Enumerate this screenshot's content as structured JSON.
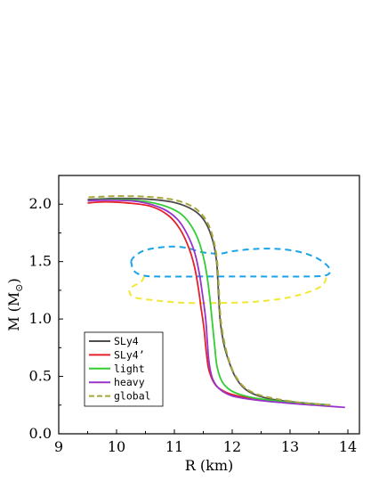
{
  "chart_data": {
    "type": "line",
    "xlabel": "R (km)",
    "ylabel": "M (M",
    "ylabel_symbol": "⊙",
    "ylabel_close": ")",
    "xlim": [
      9,
      14.2
    ],
    "ylim": [
      0,
      2.25
    ],
    "xticks": [
      9,
      10,
      11,
      12,
      13,
      14
    ],
    "yticks": [
      0.0,
      0.5,
      1.0,
      1.5,
      2.0
    ],
    "xtick_labels": [
      "9",
      "10",
      "11",
      "12",
      "13",
      "14"
    ],
    "ytick_labels": [
      "0.0",
      "0.5",
      "1.0",
      "1.5",
      "2.0"
    ],
    "legend_position": "bottom-left",
    "series": [
      {
        "name": "SLy4",
        "color": "#4d4d4d",
        "style": "solid",
        "points": [
          [
            13.7,
            0.25
          ],
          [
            13.2,
            0.27
          ],
          [
            12.7,
            0.3
          ],
          [
            12.4,
            0.34
          ],
          [
            12.2,
            0.4
          ],
          [
            12.05,
            0.5
          ],
          [
            11.95,
            0.62
          ],
          [
            11.87,
            0.75
          ],
          [
            11.82,
            0.88
          ],
          [
            11.79,
            1.0
          ],
          [
            11.77,
            1.15
          ],
          [
            11.75,
            1.35
          ],
          [
            11.73,
            1.5
          ],
          [
            11.68,
            1.65
          ],
          [
            11.58,
            1.8
          ],
          [
            11.45,
            1.9
          ],
          [
            11.25,
            1.97
          ],
          [
            10.95,
            2.02
          ],
          [
            10.5,
            2.045
          ],
          [
            10.0,
            2.05
          ],
          [
            9.5,
            2.04
          ]
        ]
      },
      {
        "name": "SLy4’",
        "color": "#e6202a",
        "style": "solid",
        "points": [
          [
            13.7,
            0.25
          ],
          [
            13.2,
            0.265
          ],
          [
            12.7,
            0.285
          ],
          [
            12.3,
            0.31
          ],
          [
            11.95,
            0.35
          ],
          [
            11.72,
            0.42
          ],
          [
            11.6,
            0.55
          ],
          [
            11.55,
            0.72
          ],
          [
            11.52,
            0.88
          ],
          [
            11.49,
            1.0
          ],
          [
            11.46,
            1.1
          ],
          [
            11.42,
            1.25
          ],
          [
            11.35,
            1.45
          ],
          [
            11.25,
            1.62
          ],
          [
            11.1,
            1.78
          ],
          [
            10.9,
            1.9
          ],
          [
            10.6,
            1.98
          ],
          [
            10.2,
            2.01
          ],
          [
            9.8,
            2.02
          ],
          [
            9.5,
            2.01
          ]
        ]
      },
      {
        "name": "light",
        "color": "#33cc33",
        "style": "solid",
        "points": [
          [
            13.7,
            0.25
          ],
          [
            13.2,
            0.265
          ],
          [
            12.7,
            0.29
          ],
          [
            12.3,
            0.32
          ],
          [
            12.0,
            0.37
          ],
          [
            11.83,
            0.45
          ],
          [
            11.74,
            0.58
          ],
          [
            11.7,
            0.75
          ],
          [
            11.67,
            0.9
          ],
          [
            11.65,
            1.0
          ],
          [
            11.62,
            1.15
          ],
          [
            11.58,
            1.32
          ],
          [
            11.52,
            1.5
          ],
          [
            11.42,
            1.68
          ],
          [
            11.28,
            1.82
          ],
          [
            11.1,
            1.92
          ],
          [
            10.8,
            1.99
          ],
          [
            10.4,
            2.03
          ],
          [
            9.9,
            2.04
          ],
          [
            9.5,
            2.03
          ]
        ]
      },
      {
        "name": "heavy",
        "color": "#9933cc",
        "style": "solid",
        "points": [
          [
            13.95,
            0.23
          ],
          [
            13.4,
            0.25
          ],
          [
            12.9,
            0.27
          ],
          [
            12.4,
            0.295
          ],
          [
            12.0,
            0.33
          ],
          [
            11.78,
            0.39
          ],
          [
            11.66,
            0.48
          ],
          [
            11.6,
            0.62
          ],
          [
            11.57,
            0.8
          ],
          [
            11.55,
            0.95
          ],
          [
            11.53,
            1.05
          ],
          [
            11.49,
            1.2
          ],
          [
            11.43,
            1.4
          ],
          [
            11.35,
            1.58
          ],
          [
            11.22,
            1.74
          ],
          [
            11.05,
            1.87
          ],
          [
            10.8,
            1.96
          ],
          [
            10.4,
            2.02
          ],
          [
            9.9,
            2.035
          ],
          [
            9.5,
            2.03
          ]
        ]
      },
      {
        "name": "global",
        "color": "#a8a83a",
        "style": "dashed",
        "points": [
          [
            13.7,
            0.25
          ],
          [
            13.2,
            0.27
          ],
          [
            12.7,
            0.31
          ],
          [
            12.4,
            0.35
          ],
          [
            12.2,
            0.41
          ],
          [
            12.05,
            0.51
          ],
          [
            11.95,
            0.63
          ],
          [
            11.88,
            0.76
          ],
          [
            11.83,
            0.89
          ],
          [
            11.8,
            1.0
          ],
          [
            11.78,
            1.15
          ],
          [
            11.76,
            1.35
          ],
          [
            11.74,
            1.5
          ],
          [
            11.69,
            1.66
          ],
          [
            11.6,
            1.81
          ],
          [
            11.46,
            1.92
          ],
          [
            11.27,
            1.99
          ],
          [
            10.97,
            2.04
          ],
          [
            10.52,
            2.065
          ],
          [
            10.0,
            2.07
          ],
          [
            9.5,
            2.06
          ]
        ]
      }
    ],
    "contours": [
      {
        "color": "#1aa3e8",
        "style": "dashed",
        "points": [
          [
            10.25,
            1.5
          ],
          [
            10.3,
            1.54
          ],
          [
            10.5,
            1.6
          ],
          [
            10.9,
            1.63
          ],
          [
            11.2,
            1.62
          ],
          [
            11.5,
            1.58
          ],
          [
            11.8,
            1.57
          ],
          [
            12.0,
            1.59
          ],
          [
            12.4,
            1.61
          ],
          [
            12.8,
            1.61
          ],
          [
            13.2,
            1.58
          ],
          [
            13.5,
            1.52
          ],
          [
            13.68,
            1.44
          ],
          [
            13.62,
            1.38
          ],
          [
            13.2,
            1.37
          ],
          [
            12.4,
            1.37
          ],
          [
            11.5,
            1.37
          ],
          [
            10.7,
            1.37
          ],
          [
            10.45,
            1.38
          ],
          [
            10.3,
            1.42
          ],
          [
            10.25,
            1.5
          ]
        ]
      },
      {
        "color": "#f2e833",
        "style": "dashed",
        "points": [
          [
            10.48,
            1.37
          ],
          [
            10.42,
            1.32
          ],
          [
            10.3,
            1.29
          ],
          [
            10.22,
            1.25
          ],
          [
            10.3,
            1.19
          ],
          [
            10.7,
            1.16
          ],
          [
            11.2,
            1.14
          ],
          [
            11.8,
            1.14
          ],
          [
            12.4,
            1.15
          ],
          [
            13.0,
            1.19
          ],
          [
            13.45,
            1.26
          ],
          [
            13.6,
            1.32
          ],
          [
            13.62,
            1.37
          ]
        ]
      }
    ]
  }
}
